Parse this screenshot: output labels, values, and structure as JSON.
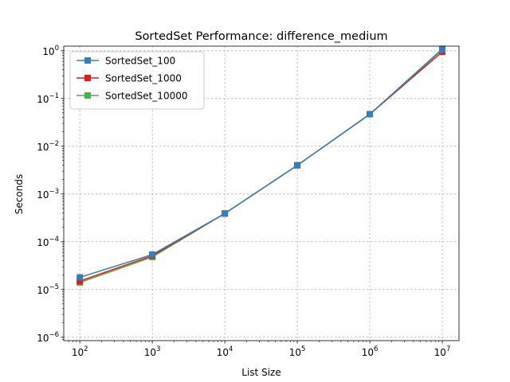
{
  "chart_data": {
    "type": "line",
    "title": "SortedSet Performance: difference_medium",
    "xlabel": "List Size",
    "ylabel": "Seconds",
    "x_scale": "log",
    "y_scale": "log",
    "xlim": [
      60,
      17000000
    ],
    "ylim": [
      8.5e-07,
      1.25
    ],
    "grid": true,
    "legend_position": "upper-left",
    "x_ticks": [
      {
        "value": 100,
        "mant": "10",
        "exp": "2"
      },
      {
        "value": 1000,
        "mant": "10",
        "exp": "3"
      },
      {
        "value": 10000,
        "mant": "10",
        "exp": "4"
      },
      {
        "value": 100000,
        "mant": "10",
        "exp": "5"
      },
      {
        "value": 1000000,
        "mant": "10",
        "exp": "6"
      },
      {
        "value": 10000000,
        "mant": "10",
        "exp": "7"
      }
    ],
    "y_ticks": [
      {
        "value": 1e-06,
        "mant": "10",
        "exp": "−6"
      },
      {
        "value": 1e-05,
        "mant": "10",
        "exp": "−5"
      },
      {
        "value": 0.0001,
        "mant": "10",
        "exp": "−4"
      },
      {
        "value": 0.001,
        "mant": "10",
        "exp": "−3"
      },
      {
        "value": 0.01,
        "mant": "10",
        "exp": "−2"
      },
      {
        "value": 0.1,
        "mant": "10",
        "exp": "−1"
      },
      {
        "value": 1,
        "mant": "10",
        "exp": "0"
      }
    ],
    "x": [
      100,
      1000,
      10000,
      100000,
      1000000,
      10000000
    ],
    "series": [
      {
        "name": "SortedSet_100",
        "color": "#377eb8",
        "values": [
          1.8e-05,
          5.4e-05,
          0.00039,
          0.004,
          0.047,
          1.05
        ]
      },
      {
        "name": "SortedSet_1000",
        "color": "#e41a1c",
        "values": [
          1.5e-05,
          5.1e-05,
          0.00039,
          0.004,
          0.047,
          0.95
        ]
      },
      {
        "name": "SortedSet_10000",
        "color": "#4daf4a",
        "values": [
          1.4e-05,
          4.8e-05,
          0.00039,
          0.004,
          0.047,
          1.1
        ]
      }
    ]
  }
}
